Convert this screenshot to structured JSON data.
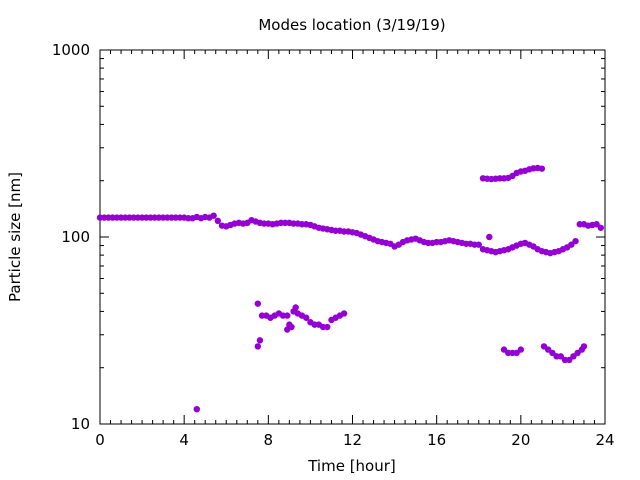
{
  "chart_data": {
    "type": "scatter",
    "title": "Modes location (3/19/19)",
    "xlabel": "Time [hour]",
    "ylabel": "Particle size [nm]",
    "xlim": [
      0,
      24
    ],
    "ylim": [
      10,
      1000
    ],
    "yscale": "log",
    "x_ticks": [
      0,
      4,
      8,
      12,
      16,
      20,
      24
    ],
    "x_tick_labels": [
      "0",
      "4",
      "8",
      "12",
      "16",
      "20",
      "24"
    ],
    "y_ticks": [
      10,
      100,
      1000
    ],
    "y_tick_labels": [
      "10",
      "100",
      "1000"
    ],
    "grid": false,
    "marker_color": "#9400d3",
    "series": [
      {
        "points": [
          [
            0.0,
            127
          ],
          [
            0.2,
            127
          ],
          [
            0.4,
            127
          ],
          [
            0.6,
            127
          ],
          [
            0.8,
            127
          ],
          [
            1.0,
            127
          ],
          [
            1.2,
            127
          ],
          [
            1.4,
            127
          ],
          [
            1.6,
            127
          ],
          [
            1.8,
            127
          ],
          [
            2.0,
            127
          ],
          [
            2.2,
            127
          ],
          [
            2.4,
            127
          ],
          [
            2.6,
            127
          ],
          [
            2.8,
            127
          ],
          [
            3.0,
            127
          ],
          [
            3.2,
            127
          ],
          [
            3.4,
            127
          ],
          [
            3.6,
            127
          ],
          [
            3.8,
            127
          ],
          [
            4.0,
            127
          ],
          [
            4.2,
            126
          ],
          [
            4.4,
            126
          ],
          [
            4.6,
            128
          ],
          [
            4.8,
            126
          ],
          [
            5.0,
            128
          ],
          [
            5.2,
            127
          ],
          [
            5.4,
            130
          ],
          [
            5.6,
            122
          ],
          [
            5.8,
            115
          ],
          [
            6.0,
            114
          ],
          [
            6.2,
            116
          ],
          [
            6.4,
            118
          ],
          [
            6.6,
            119
          ],
          [
            6.8,
            118
          ],
          [
            7.0,
            119
          ],
          [
            7.2,
            123
          ],
          [
            7.4,
            121
          ],
          [
            7.6,
            119
          ],
          [
            7.8,
            118
          ],
          [
            8.0,
            118
          ],
          [
            8.2,
            117
          ],
          [
            8.4,
            118
          ],
          [
            8.6,
            119
          ],
          [
            8.8,
            119
          ],
          [
            9.0,
            119
          ],
          [
            9.2,
            118
          ],
          [
            9.4,
            118
          ],
          [
            9.6,
            117
          ],
          [
            9.8,
            117
          ],
          [
            10.0,
            116
          ],
          [
            10.2,
            114
          ],
          [
            10.4,
            112
          ],
          [
            10.6,
            111
          ],
          [
            10.8,
            110
          ],
          [
            11.0,
            109
          ],
          [
            11.2,
            108
          ],
          [
            11.4,
            108
          ],
          [
            11.6,
            107
          ],
          [
            11.8,
            107
          ],
          [
            12.0,
            106
          ],
          [
            12.2,
            105
          ],
          [
            12.4,
            103
          ],
          [
            12.6,
            101
          ],
          [
            12.8,
            99
          ],
          [
            13.0,
            97
          ],
          [
            13.2,
            95
          ],
          [
            13.4,
            94
          ],
          [
            13.6,
            93
          ],
          [
            13.8,
            92
          ],
          [
            14.0,
            89
          ],
          [
            14.2,
            91
          ],
          [
            14.4,
            94
          ],
          [
            14.6,
            96
          ],
          [
            14.8,
            97
          ],
          [
            15.0,
            98
          ],
          [
            15.2,
            96
          ],
          [
            15.4,
            94
          ],
          [
            15.6,
            93
          ],
          [
            15.8,
            93
          ],
          [
            16.0,
            94
          ],
          [
            16.2,
            94
          ],
          [
            16.4,
            95
          ],
          [
            16.6,
            96
          ],
          [
            16.8,
            95
          ],
          [
            17.0,
            94
          ],
          [
            17.2,
            93
          ],
          [
            17.4,
            92
          ],
          [
            17.6,
            92
          ],
          [
            17.8,
            91
          ],
          [
            18.0,
            91
          ],
          [
            18.2,
            86
          ],
          [
            18.4,
            85
          ],
          [
            18.6,
            84
          ],
          [
            18.8,
            83
          ],
          [
            19.0,
            84
          ],
          [
            19.2,
            85
          ],
          [
            19.4,
            86
          ],
          [
            19.6,
            88
          ],
          [
            19.8,
            90
          ],
          [
            20.0,
            92
          ],
          [
            20.2,
            93
          ],
          [
            20.4,
            91
          ],
          [
            20.6,
            89
          ],
          [
            20.8,
            86
          ],
          [
            21.0,
            84
          ],
          [
            21.2,
            83
          ],
          [
            21.4,
            82
          ],
          [
            21.6,
            83
          ],
          [
            21.8,
            84
          ],
          [
            22.0,
            86
          ],
          [
            22.2,
            88
          ],
          [
            22.4,
            91
          ],
          [
            22.6,
            95
          ],
          [
            22.8,
            117
          ],
          [
            23.0,
            117
          ],
          [
            23.2,
            115
          ],
          [
            23.4,
            116
          ],
          [
            23.6,
            117
          ],
          [
            23.8,
            112
          ],
          [
            4.6,
            12
          ],
          [
            7.5,
            44
          ],
          [
            7.5,
            26
          ],
          [
            7.6,
            28
          ],
          [
            7.7,
            38
          ],
          [
            7.9,
            38
          ],
          [
            8.1,
            37
          ],
          [
            8.3,
            38
          ],
          [
            8.5,
            39
          ],
          [
            8.7,
            38
          ],
          [
            8.9,
            38
          ],
          [
            8.9,
            32
          ],
          [
            9.0,
            34
          ],
          [
            9.1,
            33
          ],
          [
            9.2,
            40
          ],
          [
            9.3,
            42
          ],
          [
            9.4,
            39
          ],
          [
            9.6,
            38
          ],
          [
            9.8,
            37
          ],
          [
            10.0,
            35
          ],
          [
            10.2,
            34
          ],
          [
            10.4,
            34
          ],
          [
            10.6,
            33
          ],
          [
            10.8,
            33
          ],
          [
            11.0,
            36
          ],
          [
            11.2,
            37
          ],
          [
            11.4,
            38
          ],
          [
            11.6,
            39
          ],
          [
            18.5,
            100
          ],
          [
            18.2,
            206
          ],
          [
            18.4,
            205
          ],
          [
            18.6,
            204
          ],
          [
            18.8,
            205
          ],
          [
            19.0,
            206
          ],
          [
            19.2,
            206
          ],
          [
            19.4,
            207
          ],
          [
            19.6,
            212
          ],
          [
            19.8,
            220
          ],
          [
            20.0,
            224
          ],
          [
            20.2,
            226
          ],
          [
            20.4,
            230
          ],
          [
            20.6,
            233
          ],
          [
            20.8,
            234
          ],
          [
            21.0,
            232
          ],
          [
            19.2,
            25
          ],
          [
            19.4,
            24
          ],
          [
            19.6,
            24
          ],
          [
            19.8,
            24
          ],
          [
            20.0,
            25
          ],
          [
            21.1,
            26
          ],
          [
            21.3,
            25
          ],
          [
            21.5,
            24
          ],
          [
            21.7,
            23
          ],
          [
            21.9,
            23
          ],
          [
            22.1,
            22
          ],
          [
            22.3,
            22
          ],
          [
            22.5,
            23
          ],
          [
            22.7,
            24
          ],
          [
            22.9,
            25
          ],
          [
            23.0,
            26
          ]
        ]
      }
    ]
  }
}
